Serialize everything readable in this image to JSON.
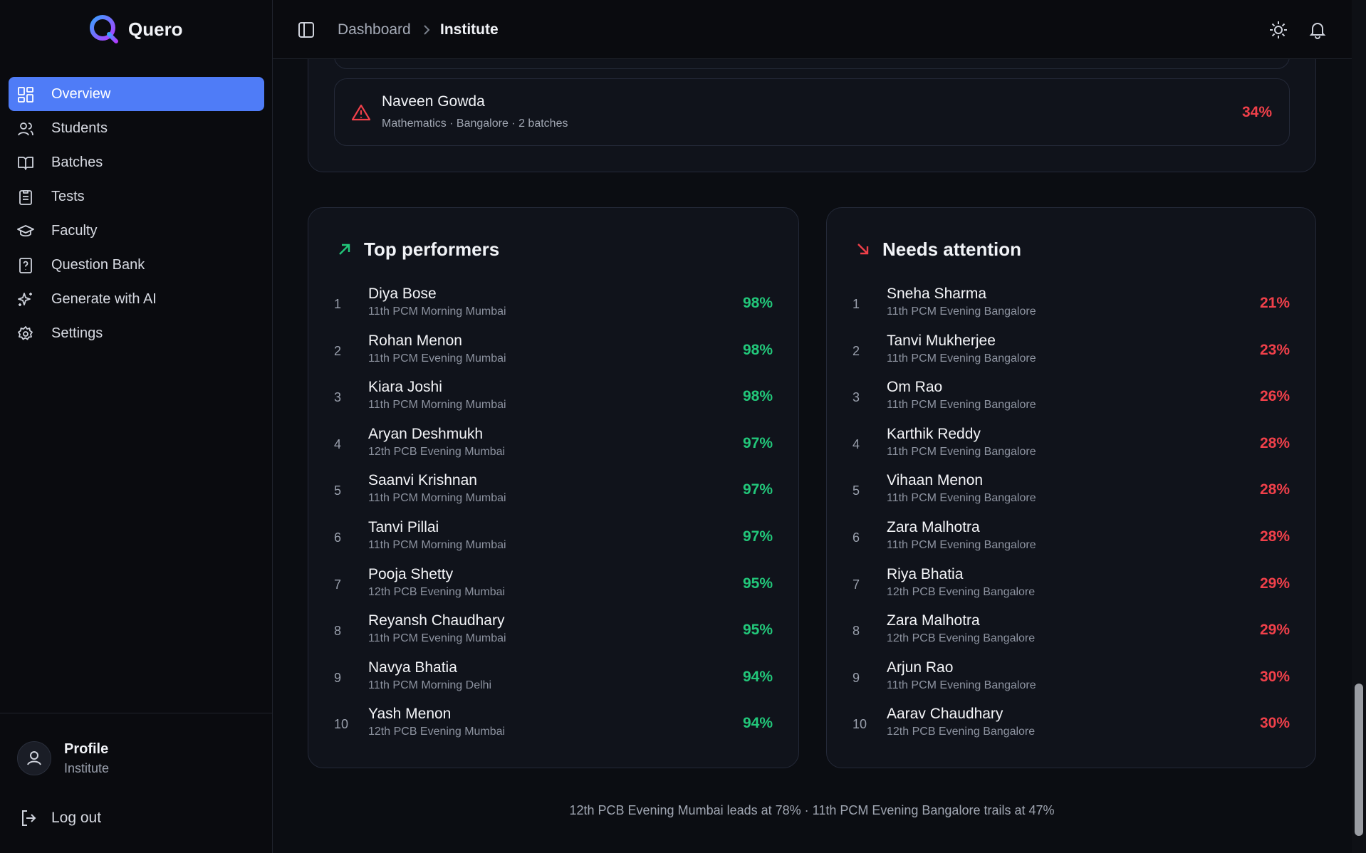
{
  "brand": "Quero",
  "nav": [
    "Overview",
    "Students",
    "Batches",
    "Tests",
    "Faculty",
    "Question Bank",
    "Generate with AI",
    "Settings"
  ],
  "profile": {
    "name": "Profile",
    "role": "Institute"
  },
  "logout": "Log out",
  "breadcrumb": [
    "Dashboard",
    "Institute"
  ],
  "alert": {
    "name": "Naveen Gowda",
    "detail": "Mathematics · Bangalore · 2 batches",
    "value": "34%"
  },
  "top_performers": {
    "title": "Top performers",
    "rows": [
      {
        "rank": 1,
        "name": "Diya Bose",
        "batch": "11th PCM Morning Mumbai",
        "score": "98%"
      },
      {
        "rank": 2,
        "name": "Rohan Menon",
        "batch": "11th PCM Evening Mumbai",
        "score": "98%"
      },
      {
        "rank": 3,
        "name": "Kiara Joshi",
        "batch": "11th PCM Morning Mumbai",
        "score": "98%"
      },
      {
        "rank": 4,
        "name": "Aryan Deshmukh",
        "batch": "12th PCB Evening Mumbai",
        "score": "97%"
      },
      {
        "rank": 5,
        "name": "Saanvi Krishnan",
        "batch": "11th PCM Morning Mumbai",
        "score": "97%"
      },
      {
        "rank": 6,
        "name": "Tanvi Pillai",
        "batch": "11th PCM Morning Mumbai",
        "score": "97%"
      },
      {
        "rank": 7,
        "name": "Pooja Shetty",
        "batch": "12th PCB Evening Mumbai",
        "score": "95%"
      },
      {
        "rank": 8,
        "name": "Reyansh Chaudhary",
        "batch": "11th PCM Evening Mumbai",
        "score": "95%"
      },
      {
        "rank": 9,
        "name": "Navya Bhatia",
        "batch": "11th PCM Morning Delhi",
        "score": "94%"
      },
      {
        "rank": 10,
        "name": "Yash Menon",
        "batch": "12th PCB Evening Mumbai",
        "score": "94%"
      }
    ]
  },
  "needs_attention": {
    "title": "Needs attention",
    "rows": [
      {
        "rank": 1,
        "name": "Sneha Sharma",
        "batch": "11th PCM Evening Bangalore",
        "score": "21%"
      },
      {
        "rank": 2,
        "name": "Tanvi Mukherjee",
        "batch": "11th PCM Evening Bangalore",
        "score": "23%"
      },
      {
        "rank": 3,
        "name": "Om Rao",
        "batch": "11th PCM Evening Bangalore",
        "score": "26%"
      },
      {
        "rank": 4,
        "name": "Karthik Reddy",
        "batch": "11th PCM Evening Bangalore",
        "score": "28%"
      },
      {
        "rank": 5,
        "name": "Vihaan Menon",
        "batch": "11th PCM Evening Bangalore",
        "score": "28%"
      },
      {
        "rank": 6,
        "name": "Zara Malhotra",
        "batch": "11th PCM Evening Bangalore",
        "score": "28%"
      },
      {
        "rank": 7,
        "name": "Riya Bhatia",
        "batch": "12th PCB Evening Bangalore",
        "score": "29%"
      },
      {
        "rank": 8,
        "name": "Zara Malhotra",
        "batch": "12th PCB Evening Bangalore",
        "score": "29%"
      },
      {
        "rank": 9,
        "name": "Arjun Rao",
        "batch": "11th PCM Evening Bangalore",
        "score": "30%"
      },
      {
        "rank": 10,
        "name": "Aarav Chaudhary",
        "batch": "12th PCB Evening Bangalore",
        "score": "30%"
      }
    ]
  },
  "footer": "12th PCB Evening Mumbai leads at 78% · 11th PCM Evening Bangalore trails at 47%"
}
